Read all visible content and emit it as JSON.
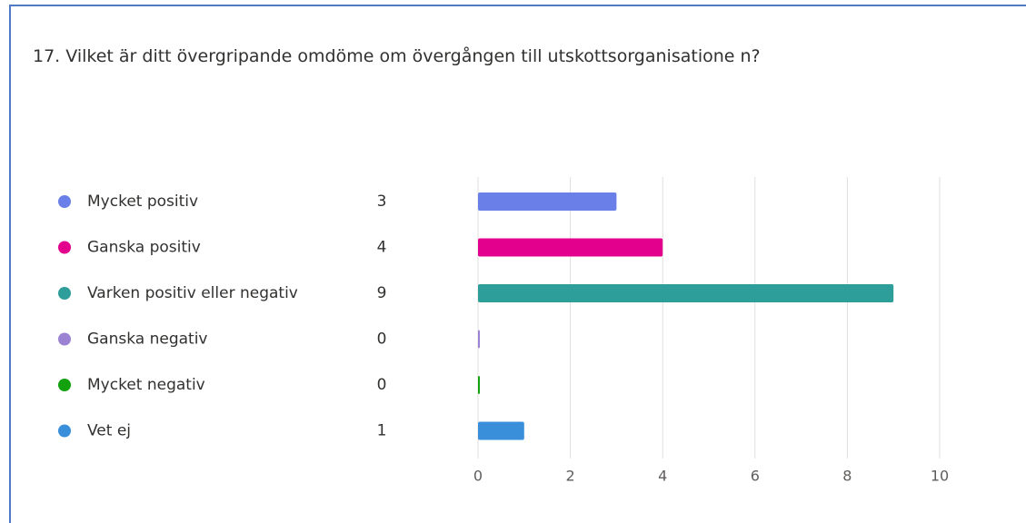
{
  "chart_data": {
    "type": "bar",
    "orientation": "horizontal",
    "title": "17. Vilket är ditt övergripande omdöme om övergången till utskottsorganisatione n?",
    "categories": [
      "Mycket positiv",
      "Ganska positiv",
      "Varken positiv eller negativ",
      "Ganska negativ",
      "Mycket negativ",
      "Vet ej"
    ],
    "series": [
      {
        "values": [
          3,
          4,
          9,
          0,
          0,
          1
        ],
        "colors": [
          "#6b7fe8",
          "#e3008c",
          "#2e9e9a",
          "#9b82d2",
          "#13a10e",
          "#3a8fdb"
        ]
      }
    ],
    "xlim": [
      0,
      10
    ],
    "xticks": [
      0,
      2,
      4,
      6,
      8,
      10
    ],
    "grid": true,
    "legend": "left"
  }
}
